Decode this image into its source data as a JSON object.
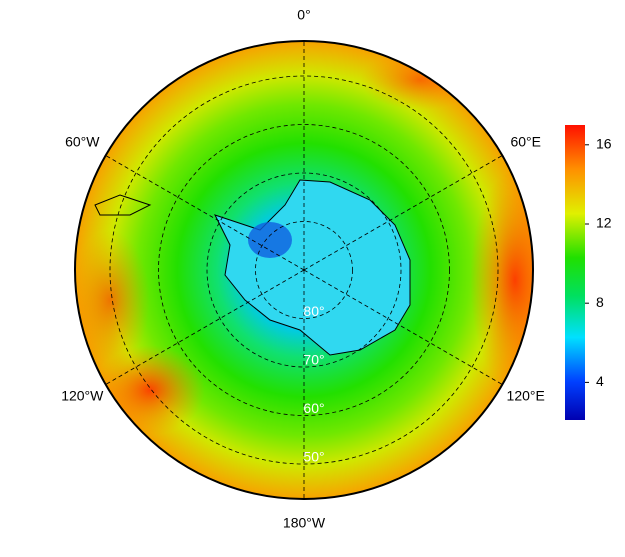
{
  "map": {
    "projection": "south-polar",
    "center": "South Pole",
    "longitude_labels": [
      {
        "value": 0,
        "label": "0°"
      },
      {
        "value": 60,
        "label": "60°E"
      },
      {
        "value": 120,
        "label": "120°E"
      },
      {
        "value": 180,
        "label": "180°W"
      },
      {
        "value": -120,
        "label": "120°W"
      },
      {
        "value": -60,
        "label": "60°W"
      }
    ],
    "latitude_labels": [
      {
        "value": -80,
        "label": "80°"
      },
      {
        "value": -70,
        "label": "70°"
      },
      {
        "value": -60,
        "label": "60°"
      },
      {
        "value": -50,
        "label": "50°"
      }
    ]
  },
  "colorbar": {
    "lim": [
      2.1,
      17
    ],
    "ticks": [
      4,
      8,
      12,
      16
    ]
  }
}
